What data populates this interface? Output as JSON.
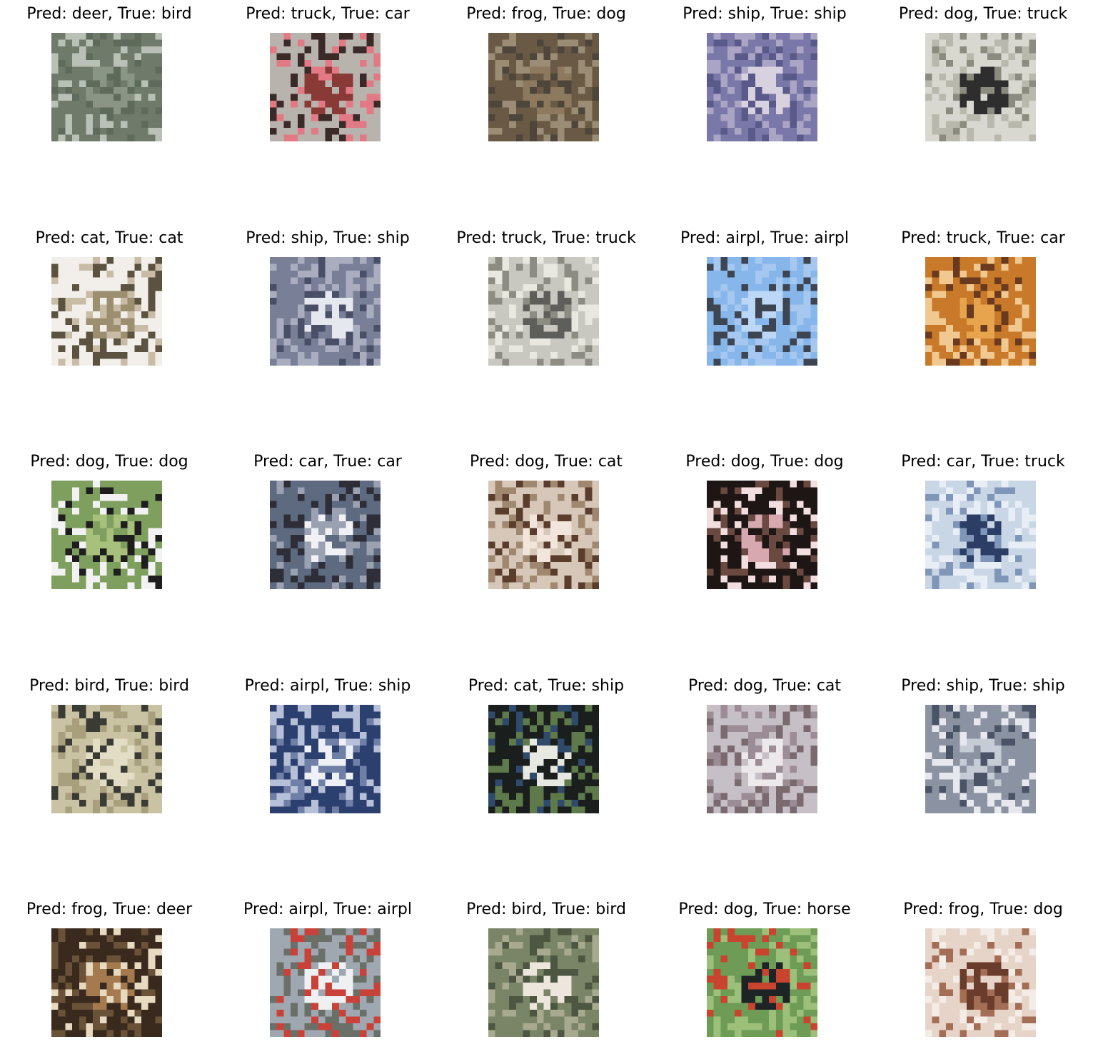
{
  "figure": {
    "rows": 5,
    "cols": 5,
    "panels": [
      {
        "title": "Pred: deer, True: bird",
        "pred": "deer",
        "true": "bird",
        "image_desc": "blurry bird on grassy background",
        "palette": [
          "#6f7a6a",
          "#8a9585",
          "#5e6a5b",
          "#b9c0b6"
        ]
      },
      {
        "title": "Pred: truck, True: car",
        "pred": "truck",
        "true": "car",
        "image_desc": "red car front close-up",
        "palette": [
          "#b9b3ad",
          "#8a3a36",
          "#e27a86",
          "#3a2a28"
        ]
      },
      {
        "title": "Pred: frog, True: dog",
        "pred": "frog",
        "true": "dog",
        "image_desc": "brown textured scene",
        "palette": [
          "#6a5a45",
          "#8d7a5e",
          "#4e463a",
          "#9b8c75"
        ]
      },
      {
        "title": "Pred: ship, True: ship",
        "pred": "ship",
        "true": "ship",
        "image_desc": "white ship on blue water",
        "palette": [
          "#7a78a8",
          "#d8d2e0",
          "#5a5a8a",
          "#aaa5c4"
        ]
      },
      {
        "title": "Pred: dog, True: truck",
        "pred": "dog",
        "true": "truck",
        "image_desc": "dark vehicle on light background",
        "palette": [
          "#d8d8d0",
          "#2e2e2e",
          "#8b8b80",
          "#b8b8ad"
        ]
      },
      {
        "title": "Pred: cat, True: cat",
        "pred": "cat",
        "true": "cat",
        "image_desc": "cat on white background",
        "palette": [
          "#f2efea",
          "#9c8f70",
          "#c8bca6",
          "#5c5240"
        ]
      },
      {
        "title": "Pred: ship, True: ship",
        "pred": "ship",
        "true": "ship",
        "image_desc": "white boat on dark water",
        "palette": [
          "#7a7f98",
          "#e6e8ef",
          "#4a4f68",
          "#a9adbf"
        ]
      },
      {
        "title": "Pred: truck, True: truck",
        "pred": "truck",
        "true": "truck",
        "image_desc": "truck with cargo",
        "palette": [
          "#c8c8c0",
          "#5e5e5a",
          "#8c8c82",
          "#e8e8e0"
        ]
      },
      {
        "title": "Pred: airpl, True: airpl",
        "pred": "airpl",
        "true": "airpl",
        "image_desc": "airplane in blue sky",
        "palette": [
          "#86b6ea",
          "#bcd8f6",
          "#3d4552",
          "#a6c8f0"
        ]
      },
      {
        "title": "Pred: truck, True: car",
        "pred": "truck",
        "true": "car",
        "image_desc": "orange car scene",
        "palette": [
          "#c87a2a",
          "#e8a44c",
          "#6a3a1e",
          "#f0c890"
        ]
      },
      {
        "title": "Pred: dog, True: dog",
        "pred": "dog",
        "true": "dog",
        "image_desc": "black and white dog on grass",
        "palette": [
          "#7f9f5e",
          "#a7c07c",
          "#1e1e1e",
          "#f2f2f2"
        ]
      },
      {
        "title": "Pred: car, True: car",
        "pred": "car",
        "true": "car",
        "image_desc": "white car",
        "palette": [
          "#5d6a80",
          "#f0f0f5",
          "#9aa2b2",
          "#2e2e38"
        ]
      },
      {
        "title": "Pred: dog, True: cat",
        "pred": "dog",
        "true": "cat",
        "image_desc": "cat face close-up",
        "palette": [
          "#d7c7b8",
          "#f2e6dc",
          "#5a3d2c",
          "#a08870"
        ]
      },
      {
        "title": "Pred: dog, True: dog",
        "pred": "dog",
        "true": "dog",
        "image_desc": "dog with pink fur and dark background",
        "palette": [
          "#1e1515",
          "#d8a8b0",
          "#6a4a40",
          "#f2dede"
        ]
      },
      {
        "title": "Pred: car, True: truck",
        "pred": "car",
        "true": "truck",
        "image_desc": "blue truck",
        "palette": [
          "#c9d6e6",
          "#2c3e66",
          "#7f96b8",
          "#e8eef6"
        ]
      },
      {
        "title": "Pred: bird, True: bird",
        "pred": "bird",
        "true": "bird",
        "image_desc": "bird standing on ground",
        "palette": [
          "#c9c2a3",
          "#e4ddc6",
          "#3b3b35",
          "#a89f7c"
        ]
      },
      {
        "title": "Pred: airpl, True: ship",
        "pred": "airpl",
        "true": "ship",
        "image_desc": "white boat on blue water",
        "palette": [
          "#2c4070",
          "#eef0f6",
          "#6f7fa6",
          "#b6c0d8"
        ]
      },
      {
        "title": "Pred: cat, True: ship",
        "pred": "cat",
        "true": "ship",
        "image_desc": "sailboat on dark water",
        "palette": [
          "#1a1e1c",
          "#e8e8e2",
          "#2f4a6a",
          "#5e7a4a"
        ]
      },
      {
        "title": "Pred: dog, True: cat",
        "pred": "dog",
        "true": "cat",
        "image_desc": "pale cat",
        "palette": [
          "#c6c0c6",
          "#ece8ec",
          "#9c8c96",
          "#7a6a70"
        ]
      },
      {
        "title": "Pred: ship, True: ship",
        "pred": "ship",
        "true": "ship",
        "image_desc": "ship on grey water",
        "palette": [
          "#8b92a2",
          "#c6ccd6",
          "#4a5466",
          "#e6e8ee"
        ]
      },
      {
        "title": "Pred: frog, True: deer",
        "pred": "frog",
        "true": "deer",
        "image_desc": "brown deer in dark background",
        "palette": [
          "#3a2a1e",
          "#a47a4e",
          "#e8dac0",
          "#6a5238"
        ]
      },
      {
        "title": "Pred: airpl, True: airpl",
        "pred": "airpl",
        "true": "airpl",
        "image_desc": "white airplane with red tail",
        "palette": [
          "#9fa8b0",
          "#eef0f2",
          "#c8423a",
          "#6a7068"
        ]
      },
      {
        "title": "Pred: bird, True: bird",
        "pred": "bird",
        "true": "bird",
        "image_desc": "white bird on branch",
        "palette": [
          "#7a8466",
          "#ece6dc",
          "#4c5640",
          "#a8aa90"
        ]
      },
      {
        "title": "Pred: dog, True: horse",
        "pred": "dog",
        "true": "horse",
        "image_desc": "dark horse on green field",
        "palette": [
          "#6e9c56",
          "#1e2426",
          "#c8442e",
          "#9cc07a"
        ]
      },
      {
        "title": "Pred: frog, True: dog",
        "pred": "frog",
        "true": "dog",
        "image_desc": "brown dog face",
        "palette": [
          "#e6d4c8",
          "#6a3c2c",
          "#a46e56",
          "#f4ece6"
        ]
      }
    ]
  }
}
